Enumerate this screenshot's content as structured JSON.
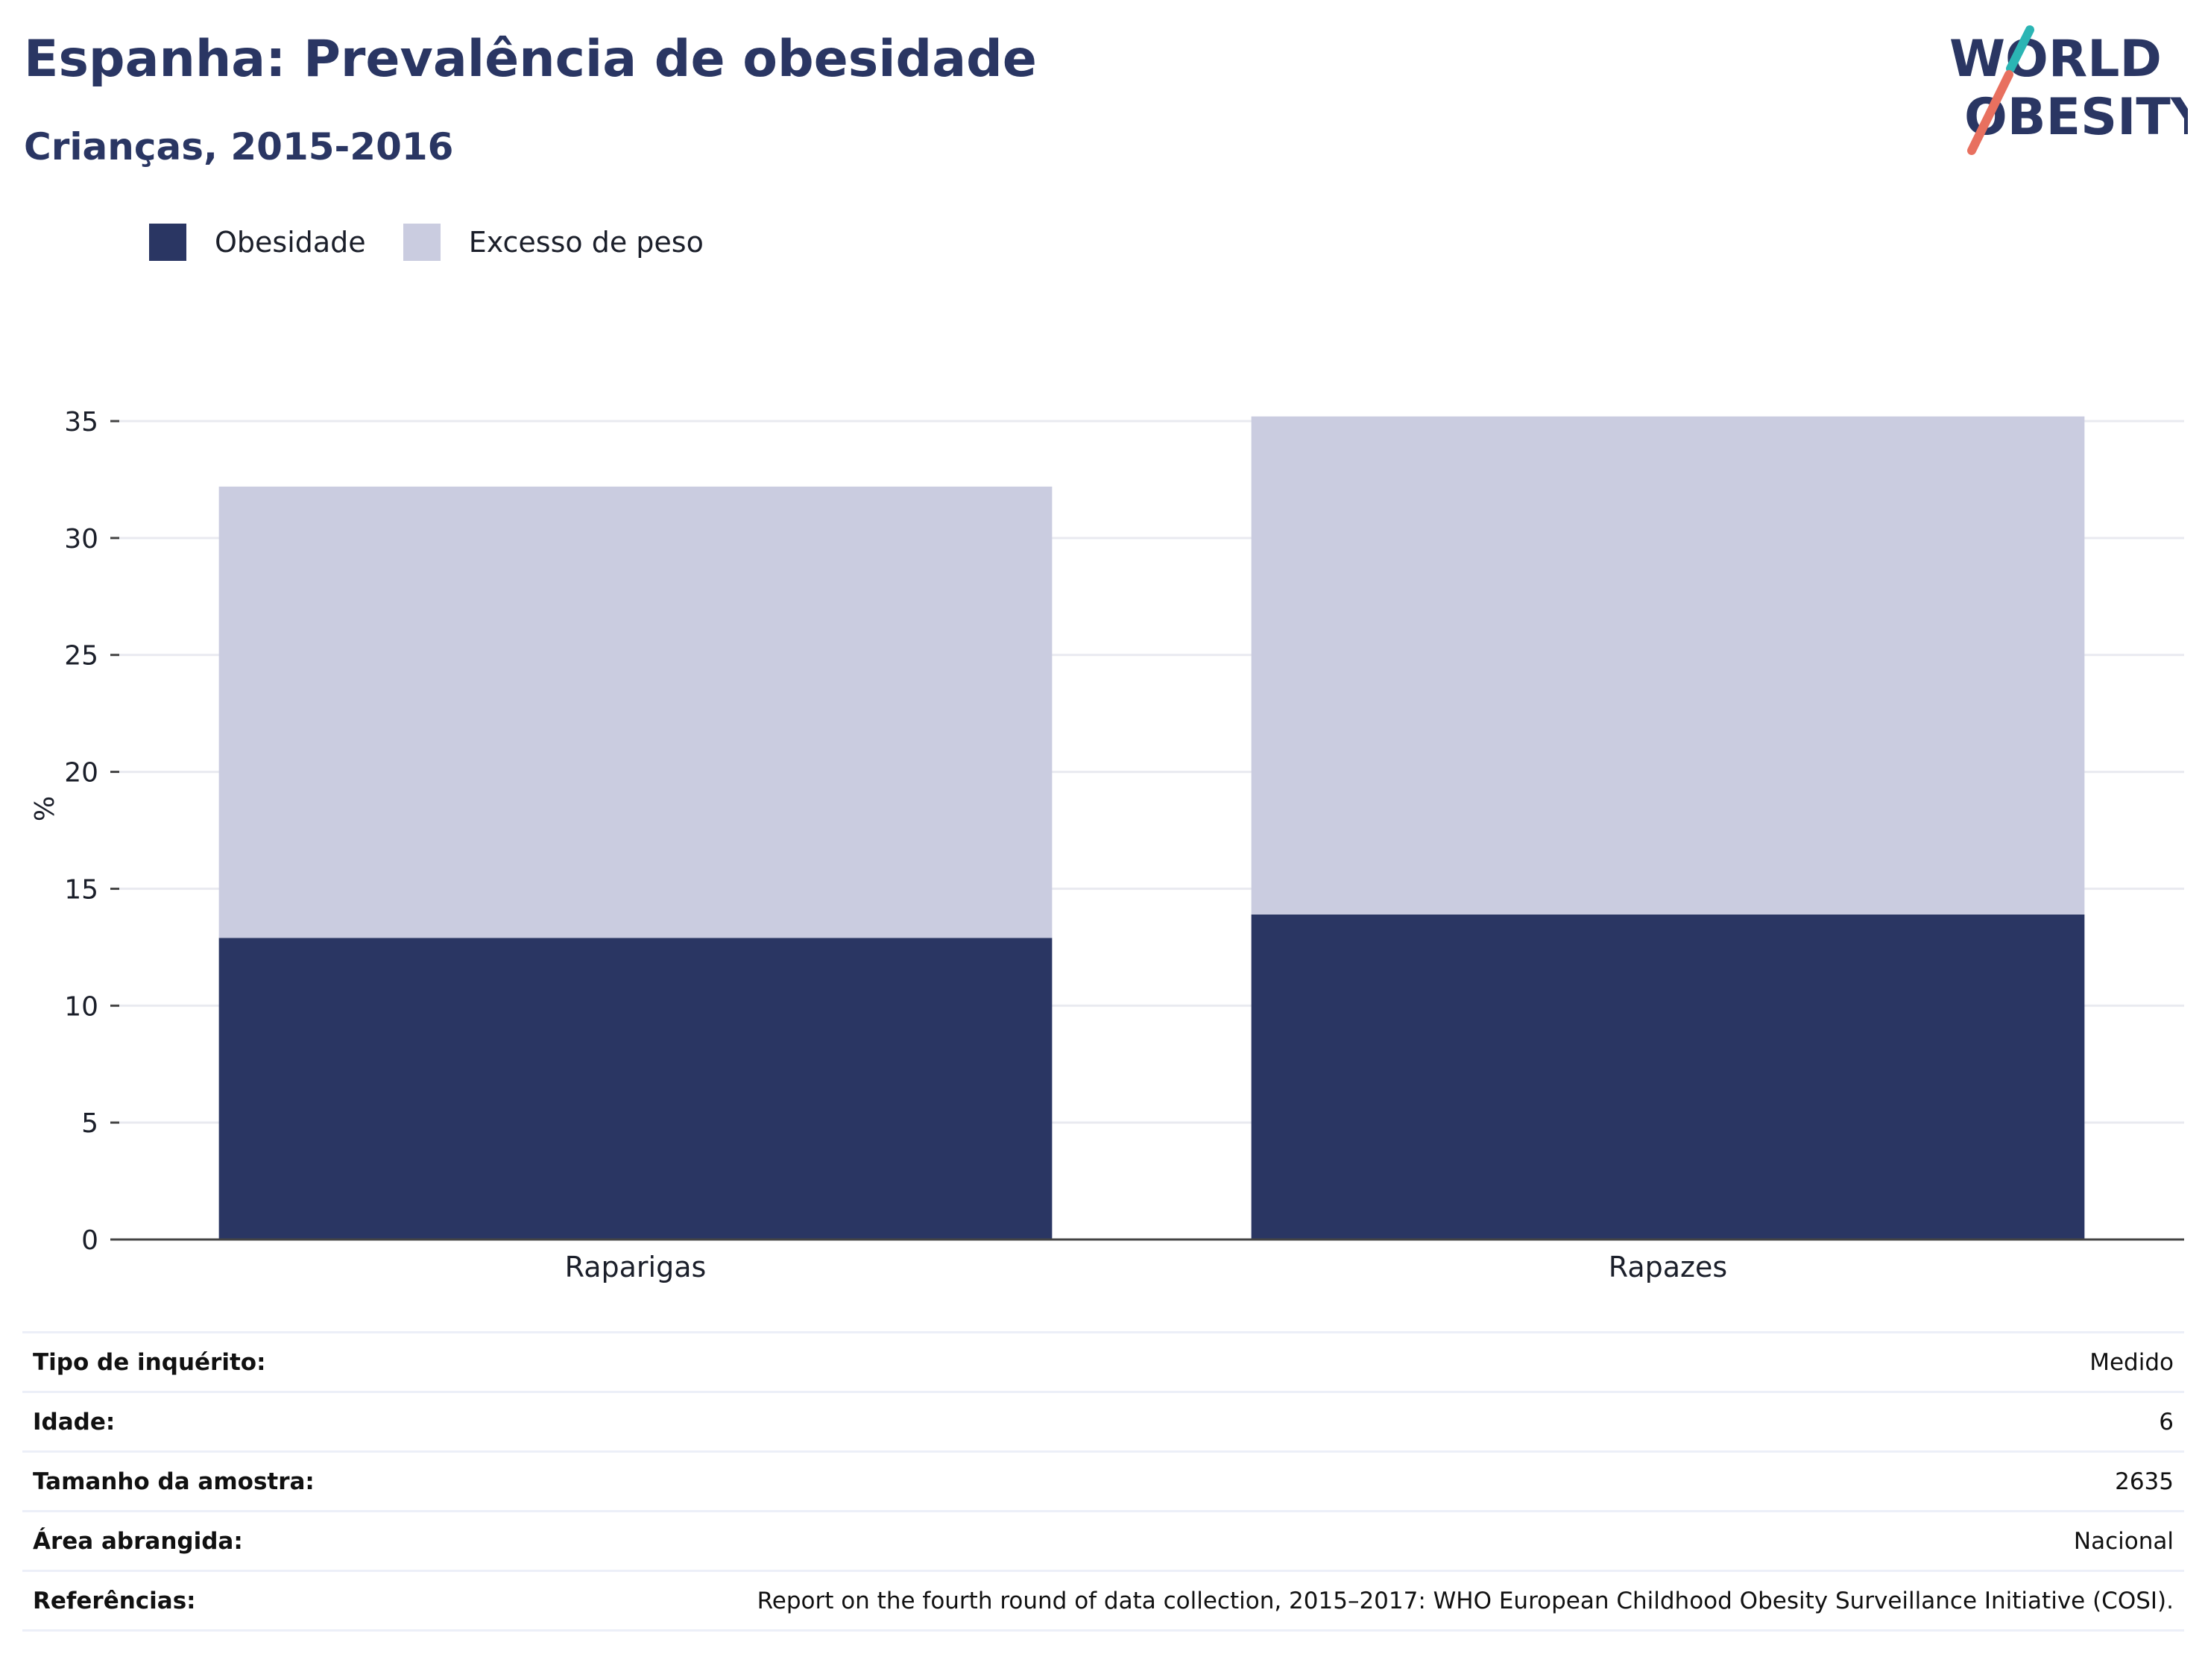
{
  "header": {
    "title": "Espanha: Prevalência de obesidade",
    "subtitle": "Crianças, 2015-2016"
  },
  "logo": {
    "line1": "WORLD",
    "line2": "OBESITY",
    "colors": {
      "text": "#2a3663",
      "teal": "#2bb5b4",
      "coral": "#e8705f"
    }
  },
  "legend": [
    {
      "label": "Obesidade",
      "color": "#2a3663"
    },
    {
      "label": "Excesso de peso",
      "color": "#cacce0"
    }
  ],
  "chart_data": {
    "type": "bar",
    "stacked": true,
    "categories": [
      "Raparigas",
      "Rapazes"
    ],
    "series": [
      {
        "name": "Obesidade",
        "color": "#2a3663",
        "values": [
          12.9,
          13.9
        ]
      },
      {
        "name": "Excesso de peso",
        "color": "#cacce0",
        "values": [
          19.3,
          21.3
        ]
      }
    ],
    "ylabel": "%",
    "ylim": [
      0,
      35
    ],
    "yticks": [
      "0",
      "5",
      "10",
      "15",
      "20",
      "25",
      "30",
      "35"
    ],
    "grid": true,
    "legend_position": "top-left"
  },
  "meta": [
    {
      "label": "Tipo de inquérito:",
      "value": "Medido"
    },
    {
      "label": "Idade:",
      "value": "6"
    },
    {
      "label": "Tamanho da amostra:",
      "value": "2635"
    },
    {
      "label": "Área abrangida:",
      "value": "Nacional"
    },
    {
      "label": "Referências:",
      "value": "Report on the fourth round of data collection, 2015–2017: WHO European Childhood Obesity Surveillance Initiative (COSI)."
    }
  ]
}
